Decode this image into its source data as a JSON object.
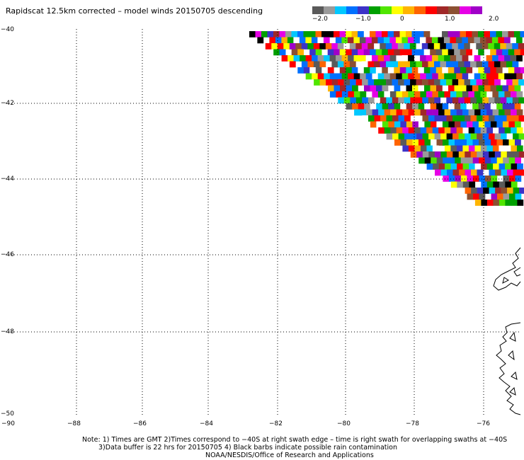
{
  "title": "Rapidscat 12.5km corrected – model winds 20150705 descending",
  "colorbar": {
    "colors": [
      "#5a5a5a",
      "#9a9a9a",
      "#00c8ff",
      "#0070ff",
      "#3c32c8",
      "#00a000",
      "#50e600",
      "#ffff00",
      "#ffb400",
      "#ff6400",
      "#ff0000",
      "#a02828",
      "#8c5032",
      "#e600e6",
      "#a000c8"
    ],
    "labels": [
      "−2.0",
      "−1.0",
      "0",
      "1.0",
      "2.0"
    ]
  },
  "axes": {
    "y_labels": [
      "−40",
      "−42",
      "−44",
      "−46",
      "−48",
      "−50"
    ],
    "x_labels": [
      "−90",
      "−88",
      "−86",
      "−84",
      "−82",
      "−80",
      "−78",
      "−76"
    ]
  },
  "notes": {
    "line1": "Note: 1) Times are GMT 2)Times correspond to −40S at right swath edge – time is right swath for overlapping swaths at −40S",
    "line2": "3)Data buffer is 22 hrs for 20150705 4) Black barbs indicate possible rain contamination",
    "line3": "NOAA/NESDIS/Office of Research and Applications"
  }
}
